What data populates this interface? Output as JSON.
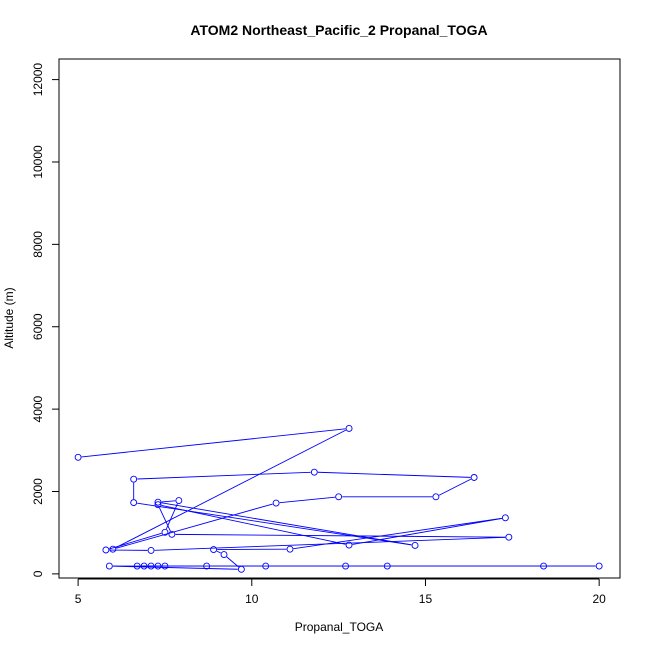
{
  "chart_data": {
    "type": "scatter",
    "title": "ATOM2 Northeast_Pacific_2 Propanal_TOGA",
    "xlabel": "Propanal_TOGA",
    "ylabel": "Altitude (m)",
    "xlim": [
      4.45,
      20.6
    ],
    "ylim": [
      -100,
      12500
    ],
    "x_ticks": [
      "5",
      "10",
      "15",
      "20"
    ],
    "x_tick_values": [
      5,
      10,
      15,
      20
    ],
    "y_ticks": [
      "0",
      "2000",
      "4000",
      "6000",
      "8000",
      "10000",
      "12000"
    ],
    "y_tick_values": [
      0,
      2000,
      4000,
      6000,
      8000,
      10000,
      12000
    ],
    "grid": false,
    "color": "#0000ff",
    "series": [
      {
        "marker": "open-circle",
        "connected": true,
        "points": [
          [
            7.1,
            190
          ],
          [
            6.9,
            190
          ],
          [
            7.3,
            190
          ],
          [
            7.5,
            190
          ],
          [
            6.7,
            190
          ],
          [
            8.7,
            190
          ],
          [
            10.4,
            190
          ],
          [
            12.7,
            190
          ],
          [
            13.9,
            190
          ],
          [
            18.4,
            190
          ],
          [
            20.0,
            190
          ],
          [
            5.9,
            190
          ],
          [
            9.7,
            110
          ],
          [
            9.2,
            470
          ],
          [
            8.9,
            590
          ],
          [
            11.1,
            600
          ],
          [
            17.3,
            1360
          ],
          [
            12.8,
            700
          ],
          [
            7.3,
            1680
          ],
          [
            7.7,
            960
          ],
          [
            17.4,
            890
          ],
          [
            7.1,
            570
          ],
          [
            5.8,
            580
          ],
          [
            7.5,
            1010
          ],
          [
            7.9,
            1780
          ],
          [
            7.3,
            1740
          ],
          [
            14.7,
            690
          ],
          [
            6.6,
            1730
          ],
          [
            6.6,
            2300
          ],
          [
            11.8,
            2470
          ],
          [
            16.4,
            2340
          ],
          [
            15.3,
            1870
          ],
          [
            12.5,
            1870
          ],
          [
            10.7,
            1720
          ],
          [
            6.0,
            600
          ],
          [
            12.8,
            3530
          ],
          [
            5.0,
            2830
          ]
        ]
      }
    ]
  }
}
